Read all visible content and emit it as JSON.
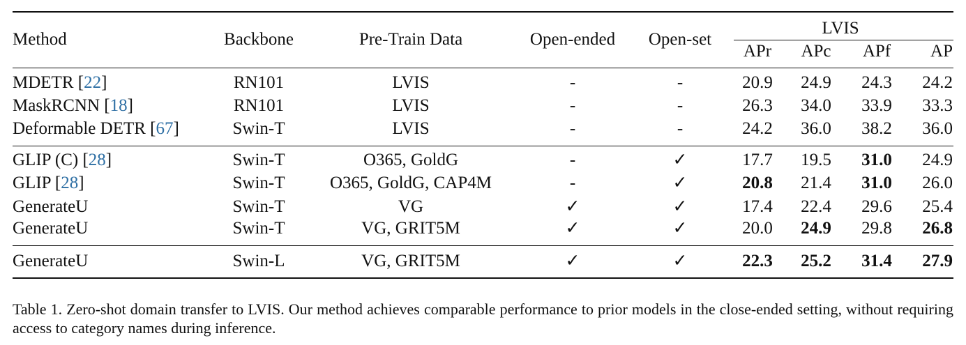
{
  "header": {
    "method": "Method",
    "backbone": "Backbone",
    "pretrain": "Pre-Train Data",
    "open_ended": "Open-ended",
    "open_set": "Open-set",
    "lvis": "LVIS",
    "lvis_cols": [
      "APr",
      "APc",
      "APf",
      "AP"
    ]
  },
  "rows": [
    {
      "method": "MDETR",
      "cite": "22",
      "backbone": "RN101",
      "pretrain": "LVIS",
      "open_ended": "-",
      "open_set": "-",
      "values": [
        "20.9",
        "24.9",
        "24.3",
        "24.2"
      ],
      "bold": [
        false,
        false,
        false,
        false
      ]
    },
    {
      "method": "MaskRCNN",
      "cite": "18",
      "backbone": "RN101",
      "pretrain": "LVIS",
      "open_ended": "-",
      "open_set": "-",
      "values": [
        "26.3",
        "34.0",
        "33.9",
        "33.3"
      ],
      "bold": [
        false,
        false,
        false,
        false
      ]
    },
    {
      "method": "Deformable DETR",
      "cite": "67",
      "backbone": "Swin-T",
      "pretrain": "LVIS",
      "open_ended": "-",
      "open_set": "-",
      "values": [
        "24.2",
        "36.0",
        "38.2",
        "36.0"
      ],
      "bold": [
        false,
        false,
        false,
        false
      ]
    },
    {
      "method": "GLIP (C)",
      "cite": "28",
      "backbone": "Swin-T",
      "pretrain": "O365, GoldG",
      "open_ended": "-",
      "open_set": "✓",
      "values": [
        "17.7",
        "19.5",
        "31.0",
        "24.9"
      ],
      "bold": [
        false,
        false,
        true,
        false
      ]
    },
    {
      "method": "GLIP",
      "cite": "28",
      "backbone": "Swin-T",
      "pretrain": "O365, GoldG, CAP4M",
      "open_ended": "-",
      "open_set": "✓",
      "values": [
        "20.8",
        "21.4",
        "31.0",
        "26.0"
      ],
      "bold": [
        true,
        false,
        true,
        false
      ]
    },
    {
      "method": "GenerateU",
      "cite": "",
      "backbone": "Swin-T",
      "pretrain": "VG",
      "open_ended": "✓",
      "open_set": "✓",
      "values": [
        "17.4",
        "22.4",
        "29.6",
        "25.4"
      ],
      "bold": [
        false,
        false,
        false,
        false
      ]
    },
    {
      "method": "GenerateU",
      "cite": "",
      "backbone": "Swin-T",
      "pretrain": "VG, GRIT5M",
      "open_ended": "✓",
      "open_set": "✓",
      "values": [
        "20.0",
        "24.9",
        "29.8",
        "26.8"
      ],
      "bold": [
        false,
        true,
        false,
        true
      ]
    },
    {
      "method": "GenerateU",
      "cite": "",
      "backbone": "Swin-L",
      "pretrain": "VG, GRIT5M",
      "open_ended": "✓",
      "open_set": "✓",
      "values": [
        "22.3",
        "25.2",
        "31.4",
        "27.9"
      ],
      "bold": [
        true,
        true,
        true,
        true
      ]
    }
  ],
  "caption": "Table 1.  Zero-shot domain transfer to LVIS. Our method achieves comparable performance to prior models in the close-ended setting, without requiring access to category names during inference."
}
